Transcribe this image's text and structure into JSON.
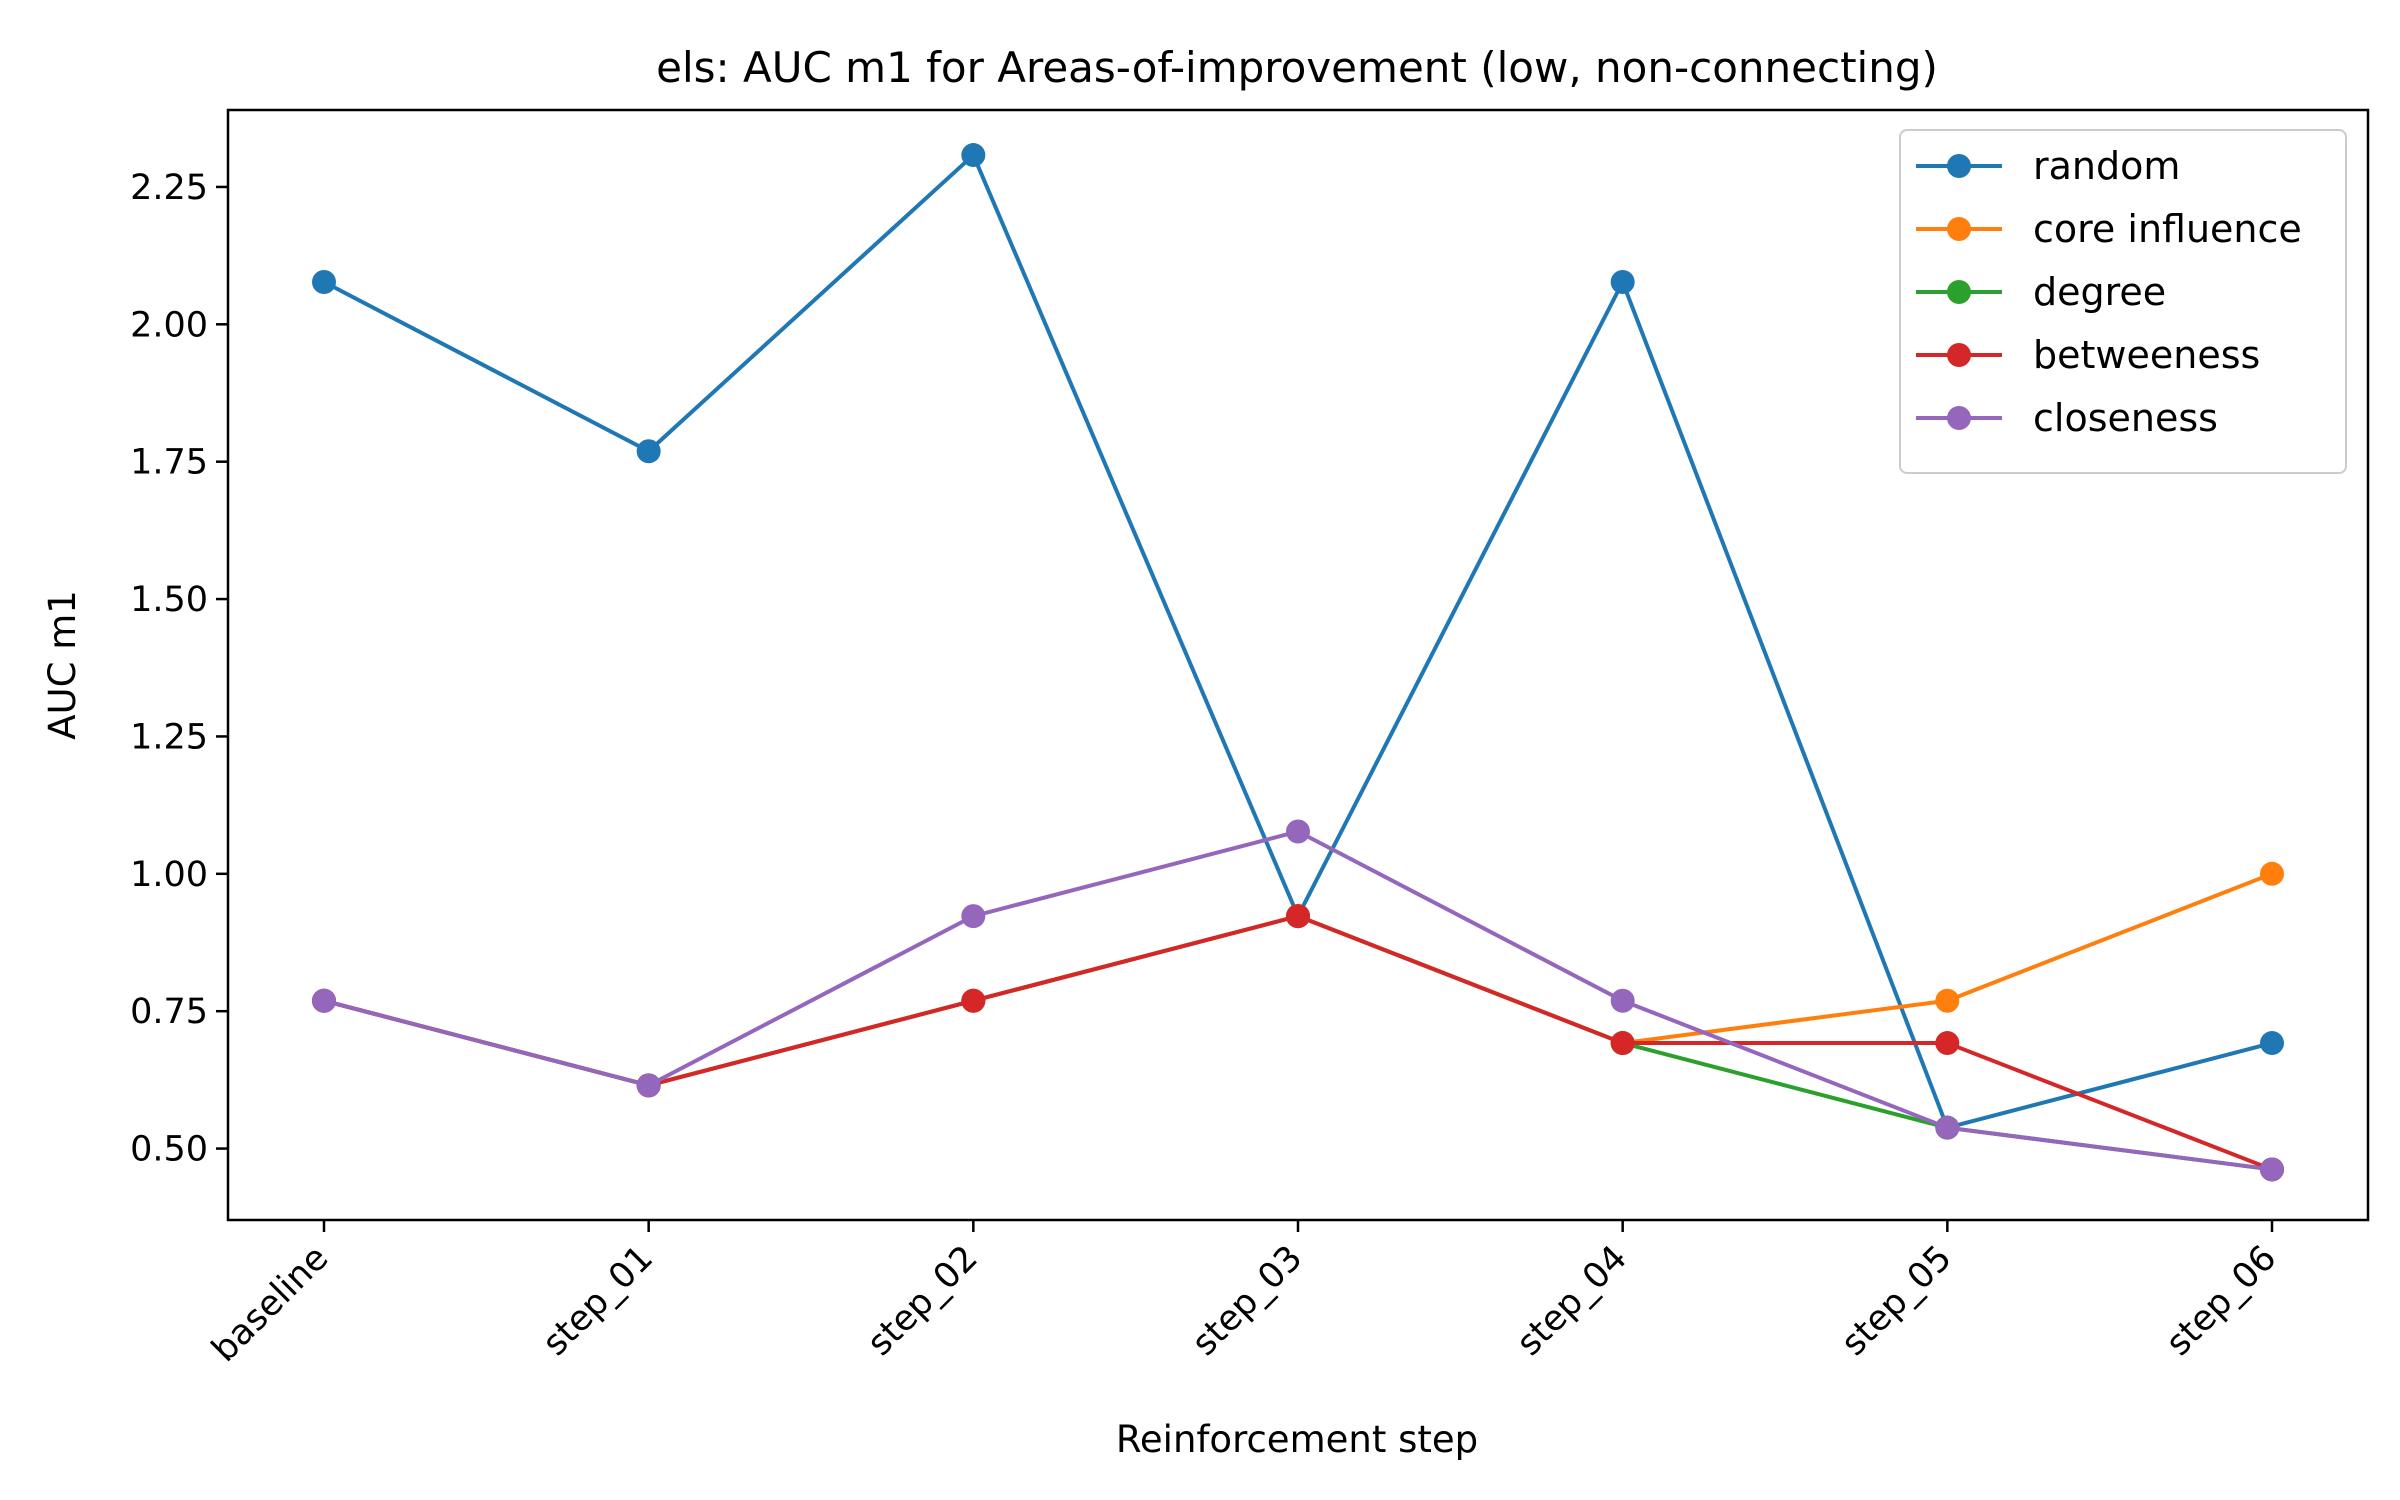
{
  "chart_data": {
    "type": "line",
    "title": "els: AUC m1 for Areas-of-improvement (low, non-connecting)",
    "xlabel": "Reinforcement step",
    "ylabel": "AUC m1",
    "categories": [
      "baseline",
      "step_01",
      "step_02",
      "step_03",
      "step_04",
      "step_05",
      "step_06"
    ],
    "ylim": [
      0.37,
      2.39
    ],
    "yticks": [
      0.5,
      0.75,
      1.0,
      1.25,
      1.5,
      1.75,
      2.0,
      2.25
    ],
    "ytick_labels": [
      "0.50",
      "0.75",
      "1.00",
      "1.25",
      "1.50",
      "1.75",
      "2.00",
      "2.25"
    ],
    "grid": false,
    "legend_position": "top-right",
    "series": [
      {
        "name": "random",
        "color": "#1f77b4",
        "values": [
          2.077,
          1.769,
          2.308,
          0.923,
          2.077,
          0.538,
          0.692
        ]
      },
      {
        "name": "core influence",
        "color": "#ff7f0e",
        "values": [
          0.769,
          0.615,
          0.769,
          0.923,
          0.692,
          0.769,
          1.0
        ]
      },
      {
        "name": "degree",
        "color": "#2ca02c",
        "values": [
          0.769,
          0.615,
          0.769,
          0.923,
          0.692,
          0.538,
          0.462
        ]
      },
      {
        "name": "betweeness",
        "color": "#d62728",
        "values": [
          0.769,
          0.615,
          0.769,
          0.923,
          0.692,
          0.692,
          0.462
        ]
      },
      {
        "name": "closeness",
        "color": "#9467bd",
        "values": [
          0.769,
          0.615,
          0.923,
          1.077,
          0.769,
          0.538,
          0.462
        ]
      }
    ]
  }
}
